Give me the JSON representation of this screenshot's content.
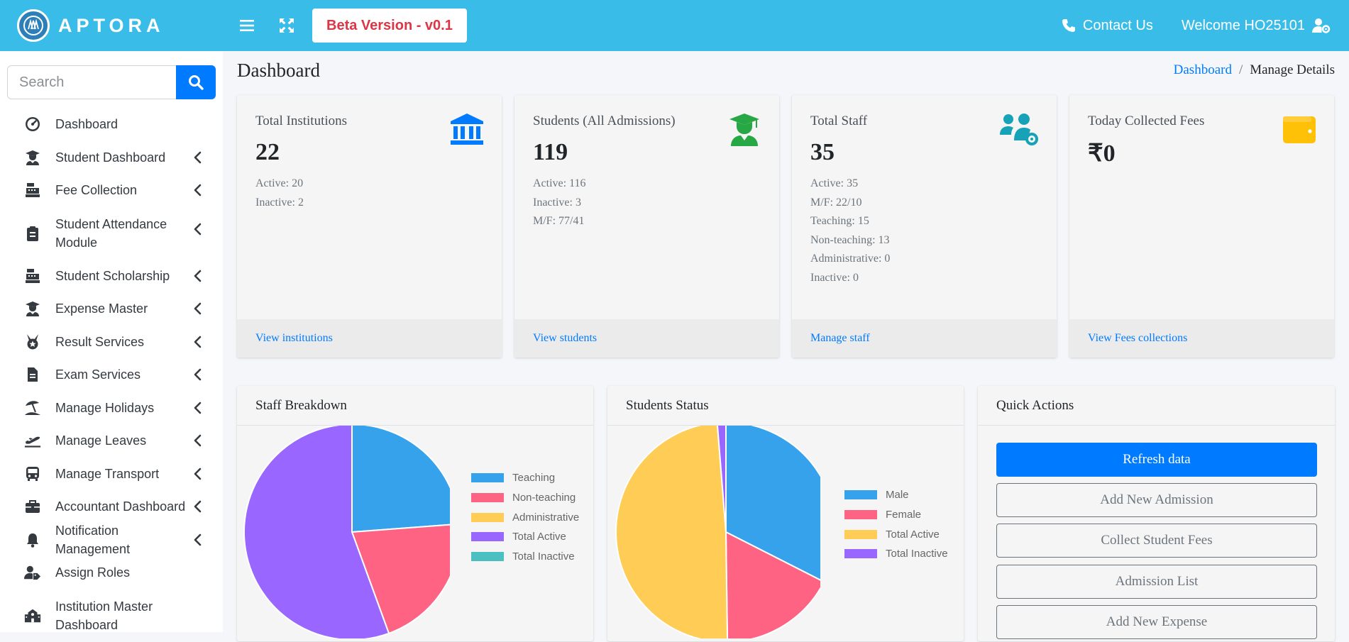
{
  "header": {
    "brand": "APTORA",
    "beta_label": "Beta Version - v0.1",
    "contact": "Contact Us",
    "welcome": "Welcome HO25101"
  },
  "search": {
    "placeholder": "Search"
  },
  "sidebar": {
    "items": [
      {
        "label": "Dashboard",
        "icon": "gauge-icon",
        "expandable": false
      },
      {
        "label": "Student Dashboard",
        "icon": "graduate-icon",
        "expandable": true
      },
      {
        "label": "Fee Collection",
        "icon": "cash-register-icon",
        "expandable": true
      },
      {
        "label": "Student Attendance Module",
        "icon": "clipboard-icon",
        "expandable": true
      },
      {
        "label": "Student Scholarship",
        "icon": "cash-register-icon",
        "expandable": true
      },
      {
        "label": "Expense Master",
        "icon": "graduate-icon",
        "expandable": true
      },
      {
        "label": "Result Services",
        "icon": "medal-icon",
        "expandable": true
      },
      {
        "label": "Exam Services",
        "icon": "document-icon",
        "expandable": true
      },
      {
        "label": "Manage Holidays",
        "icon": "umbrella-beach-icon",
        "expandable": true
      },
      {
        "label": "Manage Leaves",
        "icon": "plane-departure-icon",
        "expandable": true
      },
      {
        "label": "Manage Transport",
        "icon": "bus-icon",
        "expandable": true
      },
      {
        "label": "Accountant Dashboard",
        "icon": "briefcase-icon",
        "expandable": true
      },
      {
        "label": "Notification Management",
        "icon": "bell-icon",
        "expandable": true
      },
      {
        "label": "Assign Roles",
        "icon": "user-tag-icon",
        "expandable": false
      },
      {
        "label": "Institution Master Dashboard",
        "icon": "school-icon",
        "expandable": false
      }
    ]
  },
  "page": {
    "title": "Dashboard",
    "breadcrumb": {
      "link": "Dashboard",
      "separator": "/",
      "current": "Manage Details"
    }
  },
  "cards": [
    {
      "title": "Total Institutions",
      "value": "22",
      "lines": [
        "Active: 20",
        "Inactive: 2"
      ],
      "footer": "View institutions",
      "icon": "institution-icon",
      "color": "#007bff"
    },
    {
      "title": "Students (All Admissions)",
      "value": "119",
      "lines": [
        "Active: 116",
        "Inactive: 3",
        "M/F: 77/41"
      ],
      "footer": "View students",
      "icon": "graduate-icon",
      "color": "#28a745"
    },
    {
      "title": "Total Staff",
      "value": "35",
      "lines": [
        "Active: 35",
        "M/F: 22/10",
        "Teaching: 15",
        "Non-teaching: 13",
        "Administrative: 0",
        "Inactive: 0"
      ],
      "footer": "Manage staff",
      "icon": "users-cog-icon",
      "color": "#17a2b8"
    },
    {
      "title": "Today Collected Fees",
      "value": "₹0",
      "lines": [],
      "footer": "View Fees collections",
      "icon": "wallet-icon",
      "color": "#ffc107"
    }
  ],
  "panels": {
    "staff": {
      "title": "Staff Breakdown"
    },
    "students": {
      "title": "Students Status"
    },
    "quick": {
      "title": "Quick Actions",
      "buttons": [
        "Refresh data",
        "Add New Admission",
        "Collect Student Fees",
        "Admission List",
        "Add New Expense"
      ]
    }
  },
  "chart_data": [
    {
      "type": "pie",
      "title": "Staff Breakdown",
      "categories": [
        "Teaching",
        "Non-teaching",
        "Administrative",
        "Total Active",
        "Total Inactive"
      ],
      "values": [
        15,
        13,
        0,
        35,
        0
      ],
      "colors": [
        "#36a2eb",
        "#ff6384",
        "#ffcd56",
        "#9966ff",
        "#4bc0c0"
      ],
      "legend": "right"
    },
    {
      "type": "pie",
      "title": "Students Status",
      "categories": [
        "Male",
        "Female",
        "Total Active",
        "Total Inactive"
      ],
      "values": [
        77,
        41,
        116,
        3
      ],
      "colors": [
        "#36a2eb",
        "#ff6384",
        "#ffcd56",
        "#9966ff"
      ],
      "legend": "right"
    }
  ]
}
